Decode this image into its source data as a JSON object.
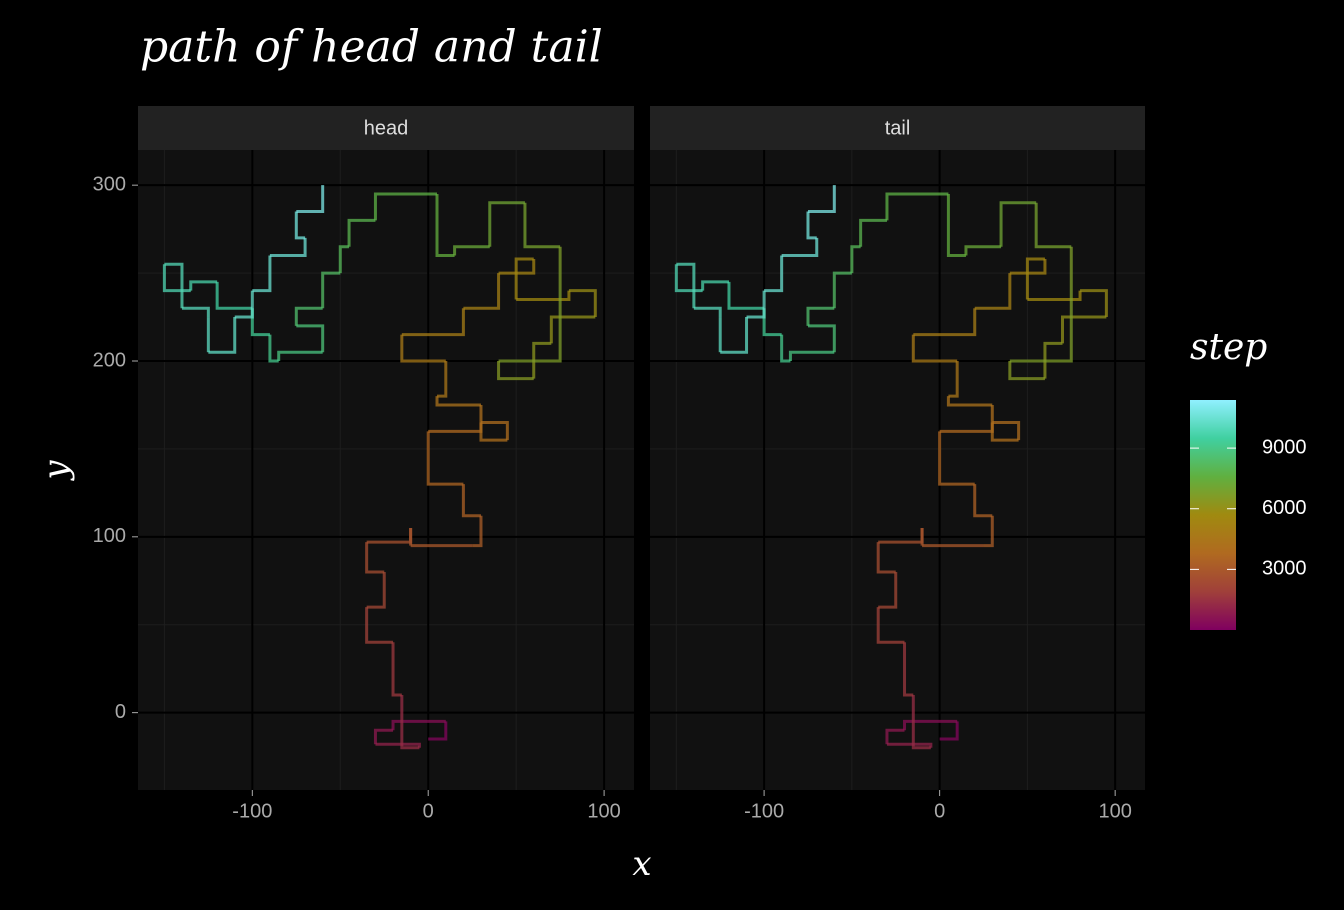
{
  "chart_data": {
    "type": "path",
    "title": "path of head and tail",
    "x_label": "x",
    "y_label": "y",
    "xlim": [
      -165,
      117
    ],
    "xticks": [
      -100,
      0,
      100
    ],
    "xminor": [
      -150,
      -50,
      50
    ],
    "ylim": [
      -44,
      320
    ],
    "yticks": [
      0,
      100,
      200,
      300
    ],
    "yminor": [
      50,
      150,
      250
    ],
    "grid": true,
    "facets": [
      {
        "name": "head",
        "x": [
          0,
          10,
          -20,
          -30,
          -5,
          -15,
          -20,
          -35,
          -25,
          -35,
          -10,
          -10,
          25,
          30,
          20,
          0,
          30,
          45,
          30,
          5,
          10,
          -15,
          20,
          40,
          60,
          50,
          80,
          95,
          70,
          60,
          40,
          75,
          55,
          35,
          15,
          5,
          -30,
          -45,
          -50,
          -60,
          -75,
          -60,
          -85,
          -90,
          -100,
          -120,
          -135,
          -150,
          -140,
          -125,
          -125,
          -110,
          -100,
          -90,
          -70,
          -75,
          -60
        ],
        "y": [
          -15,
          -5,
          -10,
          -18,
          -20,
          10,
          40,
          60,
          80,
          97,
          105,
          95,
          95,
          112,
          130,
          160,
          165,
          155,
          175,
          180,
          200,
          215,
          230,
          250,
          258,
          235,
          240,
          225,
          210,
          190,
          200,
          265,
          290,
          265,
          260,
          295,
          280,
          265,
          250,
          230,
          220,
          205,
          200,
          215,
          230,
          245,
          240,
          255,
          230,
          225,
          205,
          225,
          240,
          260,
          270,
          285,
          300
        ],
        "step": [
          1,
          300,
          600,
          900,
          1200,
          1500,
          1800,
          2100,
          2400,
          2600,
          2800,
          2900,
          3100,
          3300,
          3500,
          3700,
          3900,
          4000,
          4200,
          4400,
          4600,
          4800,
          5000,
          5200,
          5400,
          5600,
          5800,
          6000,
          6200,
          6400,
          6600,
          6800,
          7000,
          7200,
          7400,
          7600,
          7800,
          8000,
          8200,
          8400,
          8600,
          8800,
          9000,
          9200,
          9400,
          9600,
          9800,
          9900,
          10000,
          10100,
          10200,
          10300,
          10400,
          10500,
          10600,
          10800,
          11000
        ]
      },
      {
        "name": "tail",
        "x": [
          0,
          10,
          -20,
          -30,
          -5,
          -15,
          -20,
          -35,
          -25,
          -35,
          -10,
          -10,
          25,
          30,
          20,
          0,
          30,
          45,
          30,
          5,
          10,
          -15,
          20,
          40,
          60,
          50,
          80,
          95,
          70,
          60,
          40,
          75,
          55,
          35,
          15,
          5,
          -30,
          -45,
          -50,
          -60,
          -75,
          -60,
          -85,
          -90,
          -100,
          -120,
          -135,
          -150,
          -140,
          -125,
          -125,
          -110,
          -100,
          -90,
          -70,
          -75,
          -60
        ],
        "y": [
          -15,
          -5,
          -10,
          -18,
          -20,
          10,
          40,
          60,
          80,
          97,
          105,
          95,
          95,
          112,
          130,
          160,
          165,
          155,
          175,
          180,
          200,
          215,
          230,
          250,
          258,
          235,
          240,
          225,
          210,
          190,
          200,
          265,
          290,
          265,
          260,
          295,
          280,
          265,
          250,
          230,
          220,
          205,
          200,
          215,
          230,
          245,
          240,
          255,
          230,
          225,
          205,
          225,
          240,
          260,
          270,
          285,
          300
        ],
        "step": [
          1,
          300,
          600,
          900,
          1200,
          1500,
          1800,
          2100,
          2400,
          2600,
          2800,
          2900,
          3100,
          3300,
          3500,
          3700,
          3900,
          4000,
          4200,
          4400,
          4600,
          4800,
          5000,
          5200,
          5400,
          5600,
          5800,
          6000,
          6200,
          6400,
          6600,
          6800,
          7000,
          7200,
          7400,
          7600,
          7800,
          8000,
          8200,
          8400,
          8600,
          8800,
          9000,
          9200,
          9400,
          9600,
          9800,
          9900,
          10000,
          10100,
          10200,
          10300,
          10400,
          10500,
          10600,
          10800,
          11000
        ]
      }
    ],
    "colorbar": {
      "title": "step",
      "lim": [
        1,
        11380
      ],
      "ticks": [
        3000,
        6000,
        9000
      ],
      "colors": [
        "#80005f",
        "#a0403a",
        "#b06a20",
        "#a08a10",
        "#60b040",
        "#40d0a0",
        "#90f0ff"
      ]
    }
  }
}
